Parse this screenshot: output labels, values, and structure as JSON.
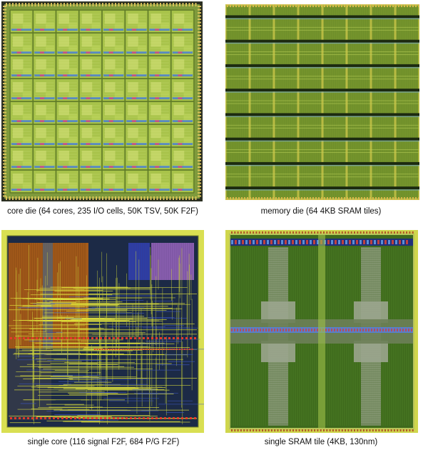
{
  "figure": {
    "panels": [
      {
        "id": "core-die",
        "caption": "core die (64 cores, 235 I/O cells, 50K TSV, 50K F2F)"
      },
      {
        "id": "memory-die",
        "caption": "memory die (64 4KB SRAM tiles)"
      },
      {
        "id": "single-core",
        "caption": "single core (116 signal F2F, 684 P/G F2F)"
      },
      {
        "id": "sram-tile",
        "caption": "single SRAM tile (4KB, 130nm)"
      }
    ]
  },
  "layout_art": {
    "core_grid": {
      "rows": 8,
      "cols": 8
    },
    "memory_grid": {
      "rows": 8,
      "cols": 8
    },
    "colors": {
      "core_bg": "#7f9a3c",
      "core_cell": "#a8c34a",
      "core_cell_light": "#c7d86a",
      "core_stripe": "#4a7fd0",
      "memory_bg": "#6f8f2a",
      "memory_band": "#1c2a10",
      "memory_line": "#c4c247",
      "sc_frame": "#d9df52",
      "sc_orange": "#a35a1a",
      "sc_yellow": "#e4e63c",
      "sc_blue": "#2c3fa6",
      "sc_purple": "#8a5fb0",
      "sram_bg": "#3e6a1c",
      "sram_bar": "#5a7fc8",
      "sram_gray": "#9aa58e"
    }
  }
}
